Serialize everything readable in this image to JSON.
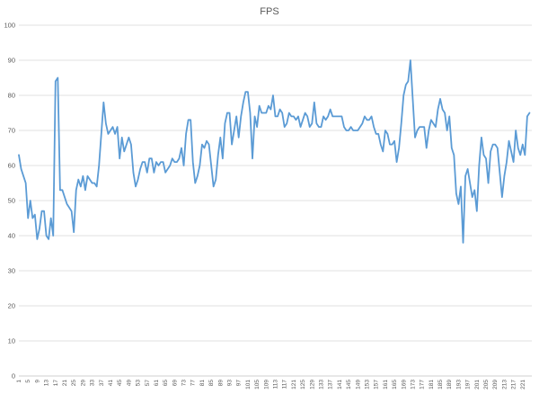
{
  "chart_data": {
    "type": "line",
    "title": "FPS",
    "xlabel": "",
    "ylabel": "",
    "ylim": [
      0,
      100
    ],
    "y_ticks": [
      0,
      10,
      20,
      30,
      40,
      50,
      60,
      70,
      80,
      90,
      100
    ],
    "xlim": [
      1,
      225
    ],
    "x_ticks": [
      1,
      5,
      9,
      13,
      17,
      21,
      25,
      29,
      33,
      37,
      41,
      45,
      49,
      53,
      57,
      61,
      65,
      69,
      73,
      77,
      81,
      85,
      89,
      93,
      97,
      101,
      105,
      109,
      113,
      117,
      121,
      125,
      129,
      133,
      137,
      141,
      145,
      149,
      153,
      157,
      161,
      165,
      169,
      173,
      177,
      181,
      185,
      189,
      193,
      197,
      201,
      205,
      209,
      213,
      217,
      221
    ],
    "grid": true,
    "legend": "none",
    "colors": {
      "series": "#5b9bd5",
      "grid": "#d9d9d9",
      "axis": "#bfbfbf",
      "text": "#595959"
    },
    "series": [
      {
        "values": [
          63,
          59,
          57,
          55,
          45,
          50,
          45,
          46,
          39,
          42,
          47,
          47,
          40,
          39,
          45,
          40,
          84,
          85,
          53,
          53,
          51,
          49,
          48,
          47,
          41,
          53,
          56,
          54,
          57,
          53,
          57,
          56,
          55,
          55,
          54,
          60,
          69,
          78,
          72,
          69,
          70,
          71,
          69,
          71,
          62,
          68,
          64,
          66,
          68,
          66,
          58,
          54,
          56,
          59,
          61,
          61,
          58,
          62,
          62,
          58,
          61,
          60,
          61,
          61,
          58,
          59,
          60,
          62,
          61,
          61,
          62,
          65,
          60,
          69,
          73,
          73,
          61,
          55,
          57,
          60,
          66,
          65,
          67,
          66,
          60,
          54,
          56,
          63,
          68,
          62,
          72,
          75,
          75,
          66,
          70,
          74,
          68,
          74,
          78,
          81,
          81,
          75,
          62,
          74,
          71,
          77,
          75,
          75,
          75,
          77,
          76,
          80,
          74,
          74,
          76,
          75,
          71,
          72,
          75,
          74,
          74,
          73,
          74,
          71,
          73,
          75,
          74,
          71,
          72,
          78,
          72,
          71,
          71,
          74,
          73,
          74,
          76,
          74,
          74,
          74,
          74,
          74,
          71,
          70,
          70,
          71,
          70,
          70,
          70,
          71,
          72,
          74,
          73,
          73,
          74,
          71,
          69,
          69,
          66,
          64,
          70,
          69,
          66,
          66,
          67,
          61,
          65,
          72,
          80,
          83,
          84,
          90,
          79,
          68,
          70,
          71,
          71,
          71,
          65,
          70,
          73,
          72,
          71,
          76,
          79,
          76,
          75,
          70,
          74,
          65,
          63,
          52,
          49,
          54,
          38,
          57,
          59,
          55,
          51,
          53,
          47,
          60,
          68,
          63,
          62,
          55,
          64,
          66,
          66,
          65,
          58,
          51,
          57,
          61,
          67,
          64,
          61,
          70,
          65,
          63,
          66,
          63,
          74,
          75
        ]
      }
    ]
  }
}
